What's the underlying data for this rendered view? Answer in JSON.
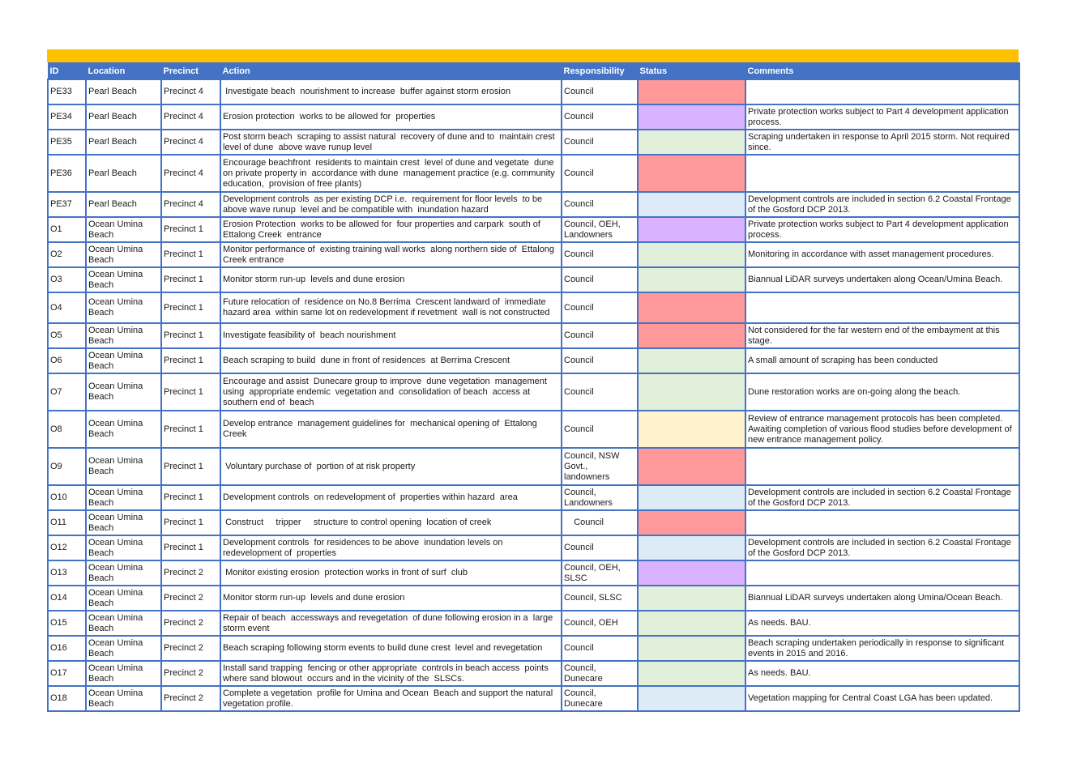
{
  "table": {
    "headers": {
      "id": "ID",
      "location": "Location",
      "precinct": "Precinct",
      "action": "Action",
      "responsibility": "Responsibility",
      "status": "Status",
      "comments": "Comments"
    },
    "status_colors": {
      "red": "#FF9999",
      "purple": "#D9B3FF",
      "green": "#E2EFDA",
      "blue": "#DDEBF7",
      "yellow": "#FFF2CC"
    },
    "rows": [
      {
        "id": "PE33",
        "location": "Pearl Beach",
        "precinct": "Precinct 4",
        "action": " Investigate beach  nourishment to increase  buffer against storm erosion",
        "responsibility": "Council",
        "status": "red",
        "comments": ""
      },
      {
        "id": "PE34",
        "location": "Pearl Beach",
        "precinct": "Precinct 4",
        "action": "Erosion protection  works to be allowed for  properties",
        "responsibility": "Council",
        "status": "purple",
        "comments": "Private protection works subject to Part 4 development application process."
      },
      {
        "id": "PE35",
        "location": "Pearl Beach",
        "precinct": "Precinct 4",
        "action": "Post storm beach  scraping to assist natural  recovery of dune and to  maintain crest level of dune  above wave runup level",
        "responsibility": "Council",
        "status": "green",
        "comments": "Scraping undertaken in response to April 2015 storm. Not required since."
      },
      {
        "id": "PE36",
        "location": "Pearl Beach",
        "precinct": "Precinct 4",
        "action": "Encourage beachfront  residents to maintain crest  level of dune and vegetate  dune on private property in  accordance with dune  management practice (e.g. community education,  provision of free plants)",
        "responsibility": "Council",
        "status": "red",
        "comments": ""
      },
      {
        "id": "PE37",
        "location": "Pearl Beach",
        "precinct": "Precinct 4",
        "action": "Development controls  as per existing DCP i.e.  requirement for floor levels  to be above wave runup  level and be compatible with  inundation hazard",
        "responsibility": "Council",
        "status": "blue",
        "comments": "Development controls are included in section 6.2 Coastal Frontage of the Gosford DCP 2013."
      },
      {
        "id": "O1",
        "location": "Ocean Umina Beach",
        "precinct": "Precinct 1",
        "action": "Erosion Protection  works to be allowed for  four properties and carpark  south of Ettalong Creek  entrance",
        "responsibility": "Council, OEH, Landowners",
        "status": "purple",
        "comments": "Private protection works subject to Part 4 development application process."
      },
      {
        "id": "O2",
        "location": "Ocean Umina Beach",
        "precinct": "Precinct 1",
        "action": "Monitor performance of  existing training wall works  along northern side of  Ettalong Creek entrance",
        "responsibility": "Council",
        "status": "green",
        "comments": "Monitoring in accordance with asset management procedures."
      },
      {
        "id": "O3",
        "location": "Ocean Umina Beach",
        "precinct": "Precinct 1",
        "action": "Monitor storm run-up  levels and dune erosion",
        "responsibility": "Council",
        "status": "green",
        "comments": "Biannual LiDAR surveys undertaken along Ocean/Umina Beach."
      },
      {
        "id": "O4",
        "location": "Ocean Umina Beach",
        "precinct": "Precinct 1",
        "action": "Future relocation of  residence on No.8 Berrima  Crescent landward of  immediate hazard area  within same lot on redevelopment if revetment  wall is not constructed",
        "responsibility": "Council",
        "status": "red",
        "comments": ""
      },
      {
        "id": "O5",
        "location": "Ocean Umina Beach",
        "precinct": "Precinct 1",
        "action": "Investigate feasibility of  beach nourishment",
        "responsibility": "Council",
        "status": "red",
        "comments": "Not considered for the far western end of the embayment at this stage."
      },
      {
        "id": "O6",
        "location": "Ocean Umina Beach",
        "precinct": "Precinct 1",
        "action": "Beach scraping to build  dune in front of residences  at Berrima Crescent",
        "responsibility": "Council",
        "status": "green",
        "comments": "A small amount of scraping has been conducted"
      },
      {
        "id": "O7",
        "location": "Ocean Umina Beach",
        "precinct": "Precinct 1",
        "action": "Encourage and assist  Dunecare group to improve  dune vegetation  management using  appropriate endemic  vegetation and  consolidation of beach  access at southern end of  beach",
        "responsibility": "Council",
        "status": "green",
        "comments": "Dune restoration works are on-going along the beach."
      },
      {
        "id": "O8",
        "location": "Ocean Umina Beach",
        "precinct": "Precinct 1",
        "action": "Develop entrance  management guidelines for  mechanical opening of  Ettalong Creek",
        "responsibility": "Council",
        "status": "yellow",
        "comments": "Review of entrance management protocols has been completed. Awaiting completion of various flood studies before development of new entrance management policy."
      },
      {
        "id": "O9",
        "location": "Ocean Umina Beach",
        "precinct": "Precinct 1",
        "action": " Voluntary purchase of  portion of at risk property",
        "responsibility": "Council, NSW Govt., landowners",
        "status": "red",
        "comments": ""
      },
      {
        "id": "O10",
        "location": "Ocean Umina Beach",
        "precinct": "Precinct 1",
        "action": "Development controls  on redevelopment of  properties within hazard  area",
        "responsibility": "Council, Landowners",
        "status": "blue",
        "comments": "Development controls are included in section 6.2 Coastal Frontage of the Gosford DCP 2013."
      },
      {
        "id": "O11",
        "location": "Ocean Umina Beach",
        "precinct": "Precinct 1",
        "action": " Construct     tripper     structure to control opening  location of creek",
        "responsibility": "    Council",
        "status": "red",
        "comments": ""
      },
      {
        "id": "O12",
        "location": "Ocean Umina Beach",
        "precinct": "Precinct 1",
        "action": "Development controls  for residences to be above  inundation levels on redevelopment of  properties",
        "responsibility": "Council",
        "status": "blue",
        "comments": "Development controls are included in section 6.2 Coastal Frontage of the Gosford DCP 2013."
      },
      {
        "id": "O13",
        "location": "Ocean Umina Beach",
        "precinct": "Precinct 2",
        "action": " Monitor existing erosion  protection works in front of surf  club",
        "responsibility": "Council, OEH, SLSC",
        "status": "purple",
        "comments": ""
      },
      {
        "id": "O14",
        "location": "Ocean Umina Beach",
        "precinct": "Precinct 2",
        "action": "Monitor storm run-up  levels and dune erosion",
        "responsibility": "Council, SLSC",
        "status": "green",
        "comments": "Biannual LiDAR surveys undertaken along Umina/Ocean Beach."
      },
      {
        "id": "O15",
        "location": "Ocean Umina Beach",
        "precinct": "Precinct 2",
        "action": "Repair of beach  accessways and revegetation  of dune following erosion in a  large storm event",
        "responsibility": "Council, OEH",
        "status": "green",
        "comments": "As needs. BAU."
      },
      {
        "id": "O16",
        "location": "Ocean Umina Beach",
        "precinct": "Precinct 2",
        "action": "Beach scraping following storm events to build dune crest  level and revegetation",
        "responsibility": "Council",
        "status": "green",
        "comments": "Beach scraping undertaken periodically in response to significant events in 2015 and 2016."
      },
      {
        "id": "O17",
        "location": "Ocean Umina Beach",
        "precinct": "Precinct 2",
        "action": "Install sand trapping  fencing or other appropriate  controls in beach access  points where sand blowout  occurs and in the vicinity of the  SLSCs.",
        "responsibility": "Council, Dunecare",
        "status": "green",
        "comments": "As needs. BAU."
      },
      {
        "id": "O18",
        "location": "Ocean Umina Beach",
        "precinct": "Precinct 2",
        "action": "Complete a vegetation  profile for Umina and Ocean  Beach and support the natural vegetation profile.",
        "responsibility": "Council, Dunecare",
        "status": "blue",
        "comments": "Vegetation mapping for Central Coast LGA has been updated."
      }
    ]
  }
}
